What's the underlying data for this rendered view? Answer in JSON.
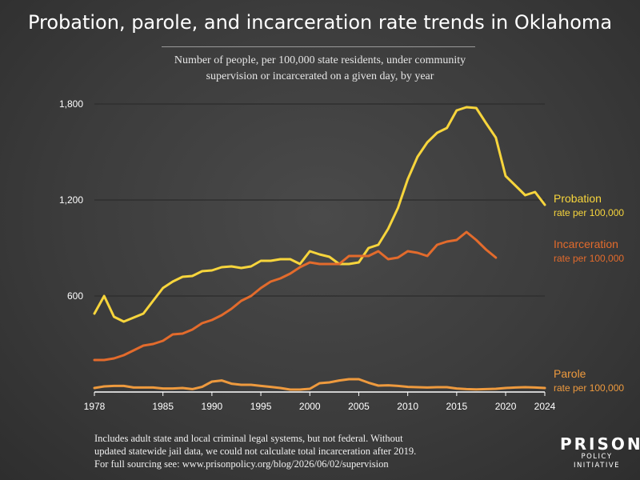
{
  "header": {
    "title": "Probation, parole, and incarceration rate trends in Oklahoma",
    "subtitle_line1": "Number of people, per 100,000 state residents, under community",
    "subtitle_line2": "supervision or incarcerated on a given day, by year"
  },
  "footer": {
    "line1": "Includes adult state and local criminal legal systems, but not federal. Without",
    "line2": "updated statewide jail data, we could not calculate total incarceration after 2019.",
    "line3": "For full sourcing see: www.prisonpolicy.org/blog/2026/06/02/supervision"
  },
  "logo": {
    "word": "PRISON",
    "sub": "POLICY INITIATIVE"
  },
  "colors": {
    "probation": "#f7d53c",
    "incarceration": "#e36b2c",
    "parole": "#ee9a3e",
    "axis": "#ffffff",
    "grid": "#2f2f2f"
  },
  "chart_data": {
    "type": "line",
    "title": "",
    "xlabel": "",
    "ylabel": "",
    "xlim": [
      1978,
      2024
    ],
    "ylim": [
      0,
      1800
    ],
    "yticks": [
      600,
      1200,
      1800
    ],
    "ytick_labels": [
      "600",
      "1,200",
      "1,800"
    ],
    "xticks": [
      1978,
      1985,
      1990,
      1995,
      2000,
      2005,
      2010,
      2015,
      2020,
      2024
    ],
    "xtick_labels": [
      "1978",
      "1985",
      "1990",
      "1995",
      "2000",
      "2005",
      "2010",
      "2015",
      "2020",
      "2024"
    ],
    "grid": true,
    "series": [
      {
        "key": "probation",
        "name": "Probation",
        "label_sub": "rate per 100,000",
        "x": [
          1978,
          1979,
          1980,
          1981,
          1982,
          1983,
          1984,
          1985,
          1986,
          1987,
          1988,
          1989,
          1990,
          1991,
          1992,
          1993,
          1994,
          1995,
          1996,
          1997,
          1998,
          1999,
          2000,
          2001,
          2002,
          2003,
          2004,
          2005,
          2006,
          2007,
          2008,
          2009,
          2010,
          2011,
          2012,
          2013,
          2014,
          2015,
          2016,
          2017,
          2018,
          2019,
          2020,
          2021,
          2022,
          2023,
          2024
        ],
        "values": [
          490,
          600,
          470,
          440,
          465,
          490,
          570,
          650,
          690,
          720,
          725,
          755,
          760,
          780,
          785,
          775,
          785,
          820,
          820,
          830,
          830,
          800,
          880,
          860,
          845,
          800,
          800,
          810,
          900,
          920,
          1020,
          1150,
          1330,
          1470,
          1560,
          1620,
          1650,
          1760,
          1780,
          1775,
          1680,
          1590,
          1350,
          1290,
          1230,
          1250,
          1170
        ]
      },
      {
        "key": "incarceration",
        "name": "Incarceration",
        "label_sub": "rate per 100,000",
        "x": [
          1978,
          1979,
          1980,
          1981,
          1982,
          1983,
          1984,
          1985,
          1986,
          1987,
          1988,
          1989,
          1990,
          1991,
          1992,
          1993,
          1994,
          1995,
          1996,
          1997,
          1998,
          1999,
          2000,
          2001,
          2002,
          2003,
          2004,
          2005,
          2006,
          2007,
          2008,
          2009,
          2010,
          2011,
          2012,
          2013,
          2014,
          2015,
          2016,
          2017,
          2018,
          2019
        ],
        "values": [
          200,
          200,
          210,
          230,
          260,
          290,
          300,
          320,
          360,
          365,
          390,
          430,
          450,
          480,
          520,
          570,
          600,
          650,
          690,
          710,
          740,
          780,
          810,
          800,
          800,
          800,
          850,
          850,
          850,
          880,
          830,
          840,
          880,
          870,
          850,
          920,
          940,
          950,
          1000,
          950,
          890,
          840
        ]
      },
      {
        "key": "parole",
        "name": "Parole",
        "label_sub": "rate per 100,000",
        "x": [
          1978,
          1979,
          1980,
          1981,
          1982,
          1983,
          1984,
          1985,
          1986,
          1987,
          1988,
          1989,
          1990,
          1991,
          1992,
          1993,
          1994,
          1995,
          1996,
          1997,
          1998,
          1999,
          2000,
          2001,
          2002,
          2003,
          2004,
          2005,
          2006,
          2007,
          2008,
          2009,
          2010,
          2011,
          2012,
          2013,
          2014,
          2015,
          2016,
          2017,
          2018,
          2019,
          2020,
          2021,
          2022,
          2023,
          2024
        ],
        "values": [
          25,
          35,
          38,
          38,
          28,
          28,
          28,
          22,
          22,
          25,
          18,
          32,
          65,
          72,
          52,
          45,
          45,
          38,
          32,
          25,
          15,
          15,
          20,
          55,
          60,
          72,
          80,
          80,
          58,
          40,
          42,
          38,
          32,
          30,
          28,
          30,
          30,
          22,
          18,
          16,
          18,
          20,
          25,
          28,
          30,
          28,
          25
        ]
      }
    ]
  }
}
